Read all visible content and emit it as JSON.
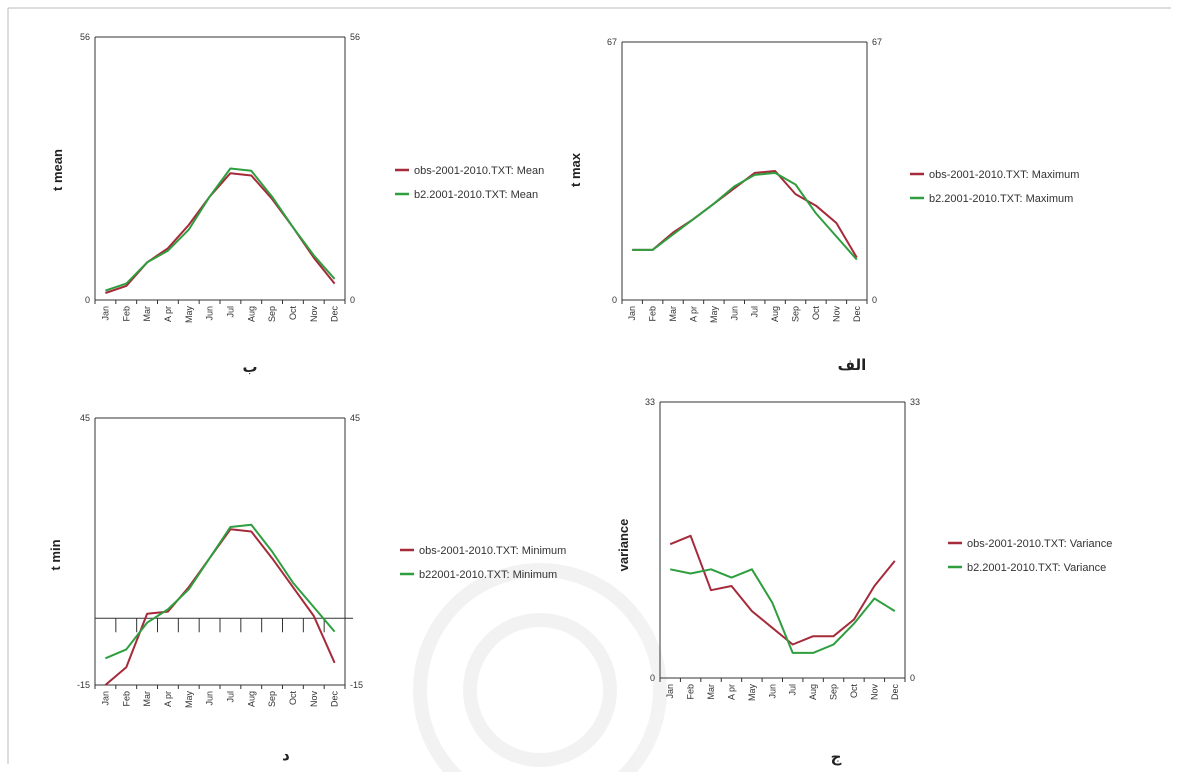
{
  "colors": {
    "obs": "#a52a3a",
    "model": "#2e9e3e",
    "axis": "#333333"
  },
  "chart_data": [
    {
      "type": "line",
      "caption": "ب",
      "ylabel": "t mean",
      "ylim": [
        0,
        56
      ],
      "yticks": [
        "0",
        "56"
      ],
      "categories": [
        "Jan",
        "Feb",
        "Mar",
        "Apr",
        "May",
        "Jun",
        "Jul",
        "Aug",
        "Sep",
        "Oct",
        "Nov",
        "Dec"
      ],
      "series": [
        {
          "name": "obs-2001-2010.TXT: Mean",
          "color": "#a52a3a",
          "values": [
            1.5,
            3,
            8,
            11,
            16,
            22,
            27,
            26.5,
            21.5,
            15.5,
            9,
            3.5
          ]
        },
        {
          "name": "b2.2001-2010.TXT: Mean",
          "color": "#2e9e3e",
          "values": [
            2,
            3.5,
            8,
            10.5,
            15,
            22,
            28,
            27.5,
            22,
            15.5,
            9.5,
            4.5
          ]
        }
      ]
    },
    {
      "type": "line",
      "caption": "الف",
      "ylabel": "t max",
      "ylim": [
        0,
        67
      ],
      "yticks": [
        "0",
        "67"
      ],
      "categories": [
        "Jan",
        "Feb",
        "Mar",
        "Apr",
        "May",
        "Jun",
        "Jul",
        "Aug",
        "Sep",
        "Oct",
        "Nov",
        "Dec"
      ],
      "series": [
        {
          "name": "obs-2001-2010.TXT: Maximum",
          "color": "#a52a3a",
          "values": [
            13,
            13,
            17.5,
            21,
            25,
            29,
            33,
            33.5,
            27.5,
            24.5,
            20,
            11
          ]
        },
        {
          "name": "b2.2001-2010.TXT: Maximum",
          "color": "#2e9e3e",
          "values": [
            13,
            13,
            17,
            21,
            25,
            29.5,
            32.5,
            33,
            30,
            22.5,
            16.5,
            10.5
          ]
        }
      ]
    },
    {
      "type": "line",
      "caption": "د",
      "ylabel": "t min",
      "ylim": [
        -15,
        45
      ],
      "yticks": [
        "-15",
        "45"
      ],
      "categories": [
        "Jan",
        "Feb",
        "Mar",
        "Apr",
        "May",
        "Jun",
        "Jul",
        "Aug",
        "Sep",
        "Oct",
        "Nov",
        "Dec"
      ],
      "series": [
        {
          "name": "obs-2001-2010.TXT: Minimum",
          "color": "#a52a3a",
          "values": [
            -15,
            -11,
            1,
            1.5,
            7,
            13.5,
            20,
            19.5,
            13.5,
            7,
            0.5,
            -10
          ]
        },
        {
          "name": "b22001-2010.TXT: Minimum",
          "color": "#2e9e3e",
          "values": [
            -9,
            -7,
            -1,
            2,
            6.5,
            13.5,
            20.5,
            21,
            15,
            8,
            2.5,
            -3
          ]
        }
      ]
    },
    {
      "type": "line",
      "caption": "ج",
      "ylabel": "variance",
      "ylim": [
        0,
        33
      ],
      "yticks": [
        "0",
        "33"
      ],
      "categories": [
        "Jan",
        "Feb",
        "Mar",
        "Apr",
        "May",
        "Jun",
        "Jul",
        "Aug",
        "Sep",
        "Oct",
        "Nov",
        "Dec"
      ],
      "series": [
        {
          "name": "obs-2001-2010.TXT: Variance",
          "color": "#a52a3a",
          "values": [
            16,
            17,
            10.5,
            11,
            8,
            6,
            4,
            5,
            5,
            7,
            11,
            14
          ]
        },
        {
          "name": "b2.2001-2010.TXT: Variance",
          "color": "#2e9e3e",
          "values": [
            13,
            12.5,
            13,
            12,
            13,
            9,
            3,
            3,
            4,
            6.5,
            9.5,
            8
          ]
        }
      ]
    }
  ],
  "tick_labels": [
    "Jan",
    "Feb",
    "Mar",
    "A pr",
    "May",
    "Jun",
    "Jul",
    "Aug",
    "Sep",
    "Oct",
    "Nov",
    "Dec"
  ]
}
